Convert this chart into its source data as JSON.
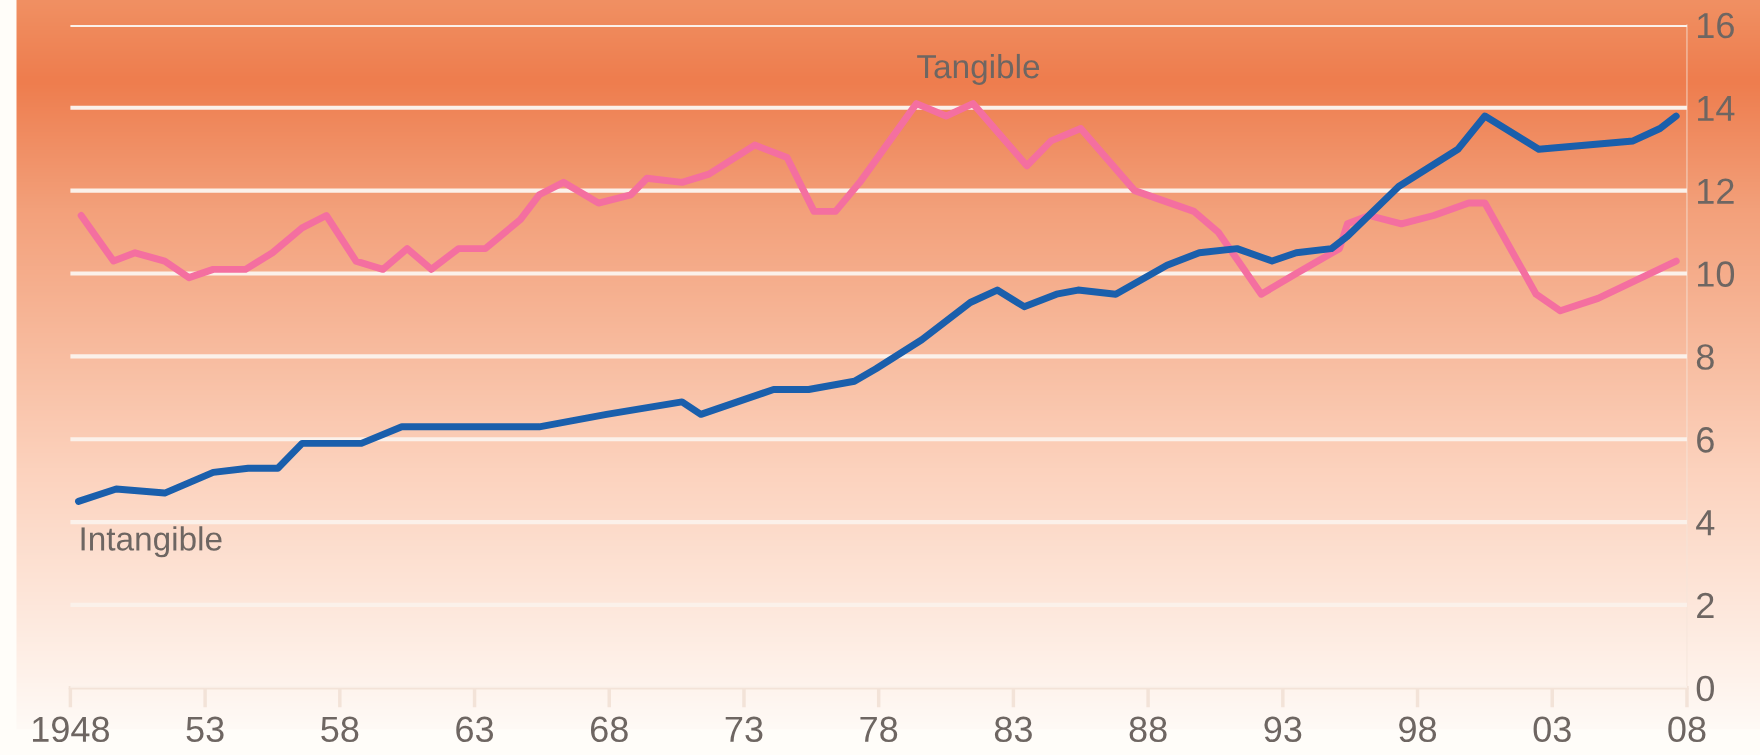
{
  "chart_data": {
    "type": "line",
    "xlim": [
      1948,
      2008
    ],
    "xticks": [
      {
        "value": 1948,
        "label": "1948"
      },
      {
        "value": 1953,
        "label": "53"
      },
      {
        "value": 1958,
        "label": "58"
      },
      {
        "value": 1963,
        "label": "63"
      },
      {
        "value": 1968,
        "label": "68"
      },
      {
        "value": 1973,
        "label": "73"
      },
      {
        "value": 1978,
        "label": "78"
      },
      {
        "value": 1983,
        "label": "83"
      },
      {
        "value": 1988,
        "label": "88"
      },
      {
        "value": 1993,
        "label": "93"
      },
      {
        "value": 1998,
        "label": "98"
      },
      {
        "value": 2003,
        "label": "03"
      },
      {
        "value": 2008,
        "label": "08"
      }
    ],
    "ylim": [
      0,
      16
    ],
    "yticks": [
      0,
      2,
      4,
      6,
      8,
      10,
      12,
      14,
      16
    ],
    "grid": "y",
    "legend": false,
    "marker": "none",
    "line_style": "solid",
    "series": [
      {
        "name": "Tangible",
        "color": "#f46fa0",
        "x": [
          1948.4,
          1949.6,
          1950.4,
          1951.5,
          1952.4,
          1953.3,
          1954.5,
          1955.5,
          1956.6,
          1957.5,
          1958.6,
          1959.6,
          1960.5,
          1961.4,
          1962.4,
          1963.4,
          1964.7,
          1965.4,
          1966.3,
          1967.6,
          1968.8,
          1969.4,
          1970.7,
          1971.7,
          1973.4,
          1974.6,
          1975.6,
          1976.4,
          1977.3,
          1979.4,
          1980.5,
          1981.5,
          1983.5,
          1984.4,
          1985.5,
          1987.5,
          1989.7,
          1990.6,
          1992.2,
          1993.5,
          1995.1,
          1995.4,
          1996.2,
          1997.4,
          1998.6,
          1999.9,
          2000.5,
          2002.4,
          2003.3,
          2004.7,
          2007.6
        ],
        "values": [
          11.4,
          10.3,
          10.5,
          10.3,
          9.9,
          10.1,
          10.1,
          10.5,
          11.1,
          11.4,
          10.3,
          10.1,
          10.6,
          10.1,
          10.6,
          10.6,
          11.3,
          11.9,
          12.2,
          11.7,
          11.9,
          12.3,
          12.2,
          12.4,
          13.1,
          12.8,
          11.5,
          11.5,
          12.2,
          14.1,
          13.8,
          14.1,
          12.6,
          13.2,
          13.5,
          12.0,
          11.5,
          11.0,
          9.5,
          10.0,
          10.6,
          11.2,
          11.4,
          11.2,
          11.4,
          11.7,
          11.7,
          9.5,
          9.1,
          9.4,
          10.3
        ]
      },
      {
        "name": "Intangible",
        "color": "#1a5fac",
        "x": [
          1948.3,
          1949.7,
          1951.5,
          1953.3,
          1954.6,
          1955.7,
          1956.6,
          1958.8,
          1960.3,
          1962.9,
          1965.4,
          1967.9,
          1970.7,
          1971.4,
          1974.1,
          1975.4,
          1977.1,
          1977.9,
          1979.6,
          1981.4,
          1982.4,
          1983.4,
          1984.6,
          1985.4,
          1986.8,
          1988.7,
          1989.9,
          1991.3,
          1992.6,
          1993.5,
          1994.8,
          1995.4,
          1997.3,
          1999.5,
          2000.5,
          2002.5,
          2006.0,
          2007.0,
          2007.6
        ],
        "values": [
          4.5,
          4.8,
          4.7,
          5.2,
          5.3,
          5.3,
          5.9,
          5.9,
          6.3,
          6.3,
          6.3,
          6.6,
          6.9,
          6.6,
          7.2,
          7.2,
          7.4,
          7.7,
          8.4,
          9.3,
          9.6,
          9.2,
          9.5,
          9.6,
          9.5,
          10.2,
          10.5,
          10.6,
          10.3,
          10.5,
          10.6,
          10.9,
          12.1,
          13.0,
          13.8,
          13.0,
          13.2,
          13.5,
          13.8
        ]
      }
    ]
  }
}
